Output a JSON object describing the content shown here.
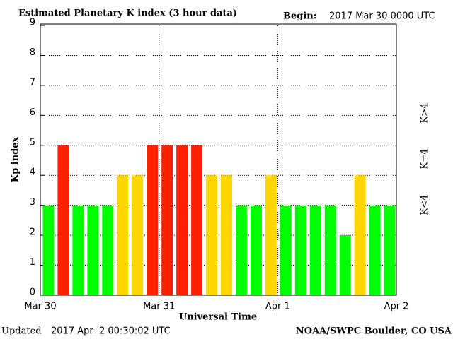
{
  "chart_data": {
    "type": "bar",
    "title": "Estimated Planetary K index (3 hour data)",
    "begin_label": "Begin:",
    "begin": "2017 Mar 30 0000 UTC",
    "updated_label": "Updated",
    "updated": "2017 Apr  2 00:30:02 UTC",
    "source": "NOAA/SWPC Boulder, CO USA",
    "xlabel": "Universal Time",
    "ylabel": "Kp index",
    "values": [
      3,
      5,
      3,
      3,
      3,
      4,
      4,
      5,
      5,
      5,
      5,
      4,
      4,
      3,
      3,
      4,
      3,
      3,
      3,
      3,
      2,
      4,
      3,
      3
    ],
    "bar_colors": [
      "#00ff00",
      "#ff2000",
      "#00ff00",
      "#00ff00",
      "#00ff00",
      "#ffd700",
      "#ffd700",
      "#ff2000",
      "#ff2000",
      "#ff2000",
      "#ff2000",
      "#ffd700",
      "#ffd700",
      "#00ff00",
      "#00ff00",
      "#ffd700",
      "#00ff00",
      "#00ff00",
      "#00ff00",
      "#00ff00",
      "#00ff00",
      "#ffd700",
      "#00ff00",
      "#00ff00"
    ],
    "xticks": [
      "Mar 30",
      "Mar 31",
      "Apr 1",
      "Apr 2"
    ],
    "ylim": [
      0,
      9
    ],
    "yticks": [
      0,
      1,
      2,
      3,
      4,
      5,
      6,
      7,
      8,
      9
    ],
    "grid": true,
    "legend": [
      {
        "label": "K<4",
        "color": "#00ff00"
      },
      {
        "label": "K=4",
        "color": "#ffd700"
      },
      {
        "label": "K>4",
        "color": "#ff2000"
      }
    ]
  }
}
